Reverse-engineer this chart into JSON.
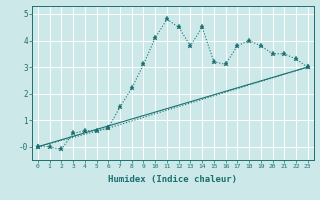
{
  "title": "",
  "xlabel": "Humidex (Indice chaleur)",
  "bg_color": "#cce8e8",
  "line_color": "#1a7070",
  "grid_color": "#ffffff",
  "xlim": [
    -0.5,
    23.5
  ],
  "ylim": [
    -0.5,
    5.3
  ],
  "yticks": [
    0,
    1,
    2,
    3,
    4,
    5
  ],
  "ytick_labels": [
    "-0",
    "1",
    "2",
    "3",
    "4",
    "5"
  ],
  "xticks": [
    0,
    1,
    2,
    3,
    4,
    5,
    6,
    7,
    8,
    9,
    10,
    11,
    12,
    13,
    14,
    15,
    16,
    17,
    18,
    19,
    20,
    21,
    22,
    23
  ],
  "line1_x": [
    0,
    1,
    2,
    3,
    4,
    5,
    6,
    7,
    8,
    9,
    10,
    11,
    12,
    13,
    14,
    15,
    16,
    17,
    18,
    19,
    20,
    21,
    22,
    23
  ],
  "line1_y": [
    0,
    0,
    -0.1,
    0.5,
    0.6,
    0.6,
    0.7,
    1.5,
    2.2,
    3.1,
    4.1,
    4.8,
    4.5,
    3.8,
    4.5,
    3.2,
    3.1,
    3.8,
    4.0,
    3.8,
    3.5,
    3.5,
    3.3,
    3.0
  ],
  "line2_x": [
    0,
    6,
    23
  ],
  "line2_y": [
    0,
    0.7,
    3.0
  ],
  "line3_x": [
    0,
    23
  ],
  "line3_y": [
    0,
    3.0
  ]
}
